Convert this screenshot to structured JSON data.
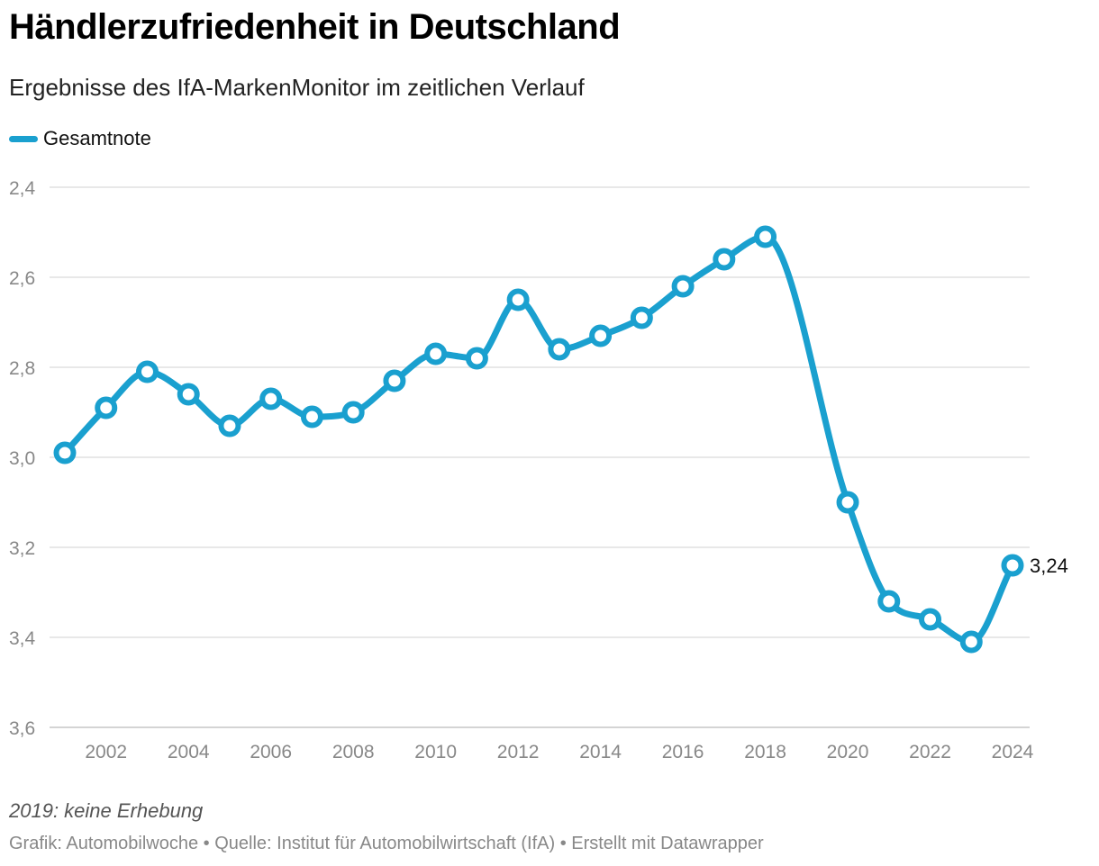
{
  "header": {
    "title": "Händlerzufriedenheit in Deutschland",
    "subtitle": "Ergebnisse des IfA-MarkenMonitor im zeitlichen Verlauf"
  },
  "legend": {
    "label": "Gesamtnote",
    "color": "#1aa0cf"
  },
  "footer": {
    "note": "2019: keine Erhebung",
    "source": "Grafik: Automobilwoche • Quelle: Institut für Automobilwirtschaft (IfA) • Erstellt mit Datawrapper"
  },
  "chart_data": {
    "type": "line",
    "title": "Händlerzufriedenheit in Deutschland",
    "subtitle": "Ergebnisse des IfA-MarkenMonitor im zeitlichen Verlauf",
    "xlabel": "",
    "ylabel": "",
    "y_inverted": true,
    "ylim": [
      2.4,
      3.6
    ],
    "y_ticks": [
      2.4,
      2.6,
      2.8,
      3.0,
      3.2,
      3.4,
      3.6
    ],
    "y_tick_labels": [
      "2,4",
      "2,6",
      "2,8",
      "3,0",
      "3,2",
      "3,4",
      "3,6"
    ],
    "xlim": [
      2001,
      2024
    ],
    "x_ticks": [
      2002,
      2004,
      2006,
      2008,
      2010,
      2012,
      2014,
      2016,
      2018,
      2020,
      2022,
      2024
    ],
    "x_tick_labels": [
      "2002",
      "2004",
      "2006",
      "2008",
      "2010",
      "2012",
      "2014",
      "2016",
      "2018",
      "2020",
      "2022",
      "2024"
    ],
    "grid": true,
    "legend_position": "top-left",
    "series": [
      {
        "name": "Gesamtnote",
        "color": "#1aa0cf",
        "points": [
          {
            "x": 2001,
            "y": 2.99
          },
          {
            "x": 2002,
            "y": 2.89
          },
          {
            "x": 2003,
            "y": 2.81
          },
          {
            "x": 2004,
            "y": 2.86
          },
          {
            "x": 2005,
            "y": 2.93
          },
          {
            "x": 2006,
            "y": 2.87
          },
          {
            "x": 2007,
            "y": 2.91
          },
          {
            "x": 2008,
            "y": 2.9
          },
          {
            "x": 2009,
            "y": 2.83
          },
          {
            "x": 2010,
            "y": 2.77
          },
          {
            "x": 2011,
            "y": 2.78
          },
          {
            "x": 2012,
            "y": 2.65
          },
          {
            "x": 2013,
            "y": 2.76
          },
          {
            "x": 2014,
            "y": 2.73
          },
          {
            "x": 2015,
            "y": 2.69
          },
          {
            "x": 2016,
            "y": 2.62
          },
          {
            "x": 2017,
            "y": 2.56
          },
          {
            "x": 2018,
            "y": 2.51
          },
          {
            "x": 2020,
            "y": 3.1
          },
          {
            "x": 2021,
            "y": 3.32
          },
          {
            "x": 2022,
            "y": 3.36
          },
          {
            "x": 2023,
            "y": 3.41
          },
          {
            "x": 2024,
            "y": 3.24
          }
        ]
      }
    ],
    "annotations": [
      {
        "x": 2024,
        "y": 3.24,
        "text": "3,24"
      }
    ]
  }
}
